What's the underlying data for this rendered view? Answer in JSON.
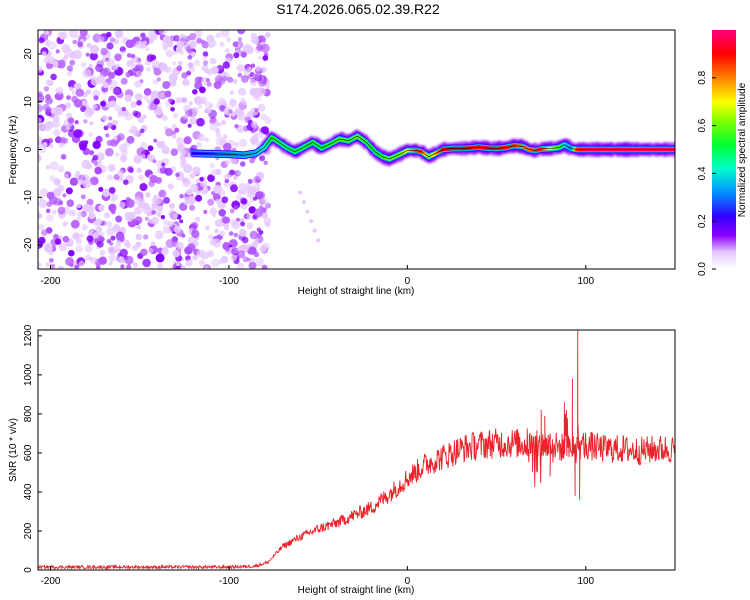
{
  "title": "S174.2026.065.02.39.R22",
  "chart_data": [
    {
      "type": "heatmap",
      "panel": "spectrogram",
      "xlabel": "Height of straight line (km)",
      "ylabel": "Frequency (Hz)",
      "xlim": [
        -207,
        150
      ],
      "ylim": [
        -25,
        25
      ],
      "xticks": [
        -200,
        -100,
        0,
        100
      ],
      "yticks": [
        -20,
        -10,
        0,
        10,
        20
      ],
      "noise_region_x": [
        -207,
        -80
      ],
      "ridge": {
        "x": [
          -120,
          -110,
          -100,
          -92,
          -85,
          -80,
          -76,
          -72,
          -68,
          -63,
          -58,
          -53,
          -48,
          -43,
          -38,
          -33,
          -28,
          -23,
          -18,
          -14,
          -10,
          -6,
          -3,
          0,
          5,
          8,
          12,
          16,
          20,
          25,
          30,
          35,
          40,
          45,
          50,
          55,
          60,
          65,
          68,
          72,
          75,
          80,
          85,
          88,
          92,
          95,
          100,
          110,
          120,
          130,
          140,
          150
        ],
        "y": [
          -0.8,
          -0.9,
          -1.0,
          -1.2,
          -0.8,
          0.5,
          2.5,
          1.5,
          0.5,
          -0.5,
          0.5,
          1.5,
          0.3,
          1.2,
          2.2,
          1.8,
          2.8,
          1.5,
          -0.5,
          -1.5,
          -2.0,
          -1.3,
          -0.8,
          -0.2,
          -0.2,
          -0.5,
          -1.5,
          -0.8,
          0.0,
          0.2,
          0.2,
          0.3,
          0.5,
          0.3,
          0.2,
          0.4,
          0.8,
          0.6,
          0.0,
          -0.2,
          0.1,
          0.2,
          0.4,
          1.0,
          0.2,
          0.0,
          0.0,
          0.0,
          0.0,
          0.0,
          0.0,
          0.0
        ],
        "amplitude": [
          0.22,
          0.26,
          0.3,
          0.32,
          0.35,
          0.42,
          0.55,
          0.5,
          0.48,
          0.52,
          0.5,
          0.55,
          0.5,
          0.55,
          0.58,
          0.55,
          0.6,
          0.55,
          0.5,
          0.55,
          0.6,
          0.58,
          0.62,
          0.7,
          0.85,
          0.85,
          0.6,
          0.75,
          0.9,
          0.9,
          0.9,
          0.9,
          0.9,
          0.9,
          0.88,
          0.88,
          0.85,
          0.8,
          0.82,
          0.85,
          0.88,
          0.7,
          0.55,
          0.4,
          0.3,
          0.85,
          0.95,
          0.95,
          0.95,
          0.95,
          0.95,
          0.95
        ]
      },
      "colorbar": {
        "label": "Normalized spectral amplitude",
        "range": [
          0.0,
          1.0
        ],
        "ticks": [
          0.0,
          0.2,
          0.4,
          0.6,
          0.8
        ],
        "tick_labels": [
          "0.0",
          "0.2",
          "0.4",
          "0.6",
          "0.8"
        ]
      }
    },
    {
      "type": "line",
      "panel": "snr",
      "xlabel": "Height of straight line (km)",
      "ylabel": "SNR (10 * v/v)",
      "xlim": [
        -207,
        150
      ],
      "ylim": [
        0,
        1230
      ],
      "xticks": [
        -200,
        -100,
        0,
        100
      ],
      "yticks": [
        0,
        200,
        400,
        600,
        800,
        1000,
        1200
      ],
      "line_color": "#e8232a",
      "envelope": {
        "x": [
          -207,
          -150,
          -100,
          -85,
          -78,
          -70,
          -60,
          -50,
          -40,
          -30,
          -20,
          -10,
          0,
          10,
          20,
          30,
          40,
          50,
          60,
          70,
          80,
          85,
          90,
          93,
          95,
          97,
          100,
          110,
          120,
          130,
          140,
          150
        ],
        "y": [
          15,
          15,
          15,
          20,
          40,
          120,
          170,
          210,
          240,
          280,
          320,
          390,
          470,
          540,
          580,
          620,
          640,
          650,
          650,
          640,
          640,
          630,
          620,
          620,
          620,
          640,
          640,
          620,
          620,
          610,
          620,
          620
        ]
      },
      "spikes": [
        {
          "x": 95.5,
          "y": 1230
        },
        {
          "x": 92.5,
          "y": 980
        },
        {
          "x": 94,
          "y": 380
        },
        {
          "x": 88,
          "y": 860
        },
        {
          "x": 96.5,
          "y": 360
        },
        {
          "x": 75,
          "y": 820
        },
        {
          "x": 80,
          "y": 480
        },
        {
          "x": 77,
          "y": 790
        },
        {
          "x": 73,
          "y": 500
        }
      ]
    }
  ]
}
